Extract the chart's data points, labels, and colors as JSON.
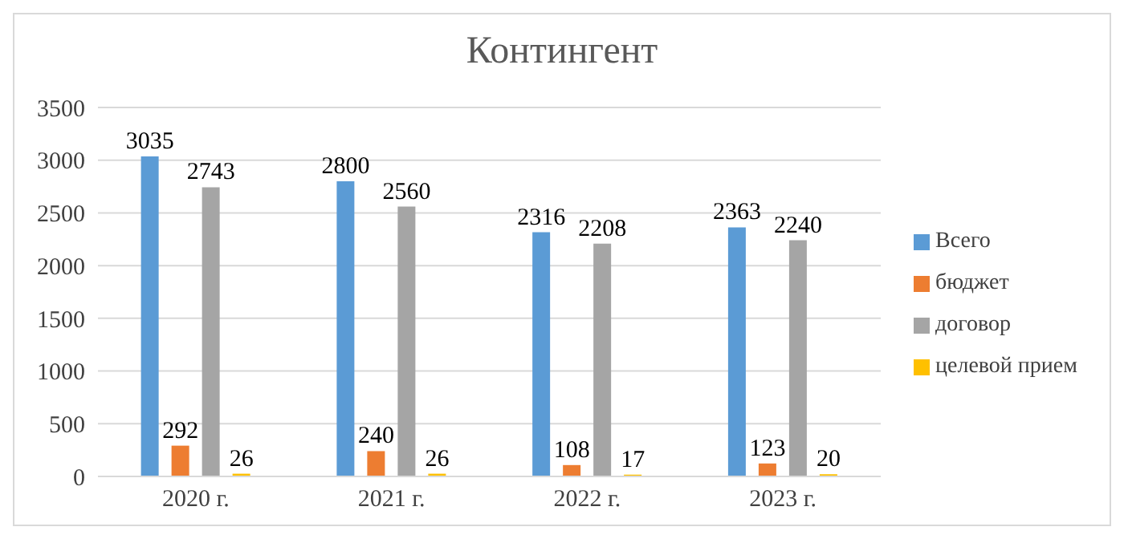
{
  "chart_data": {
    "type": "bar",
    "title": "Контингент",
    "categories": [
      "2020 г.",
      "2021 г.",
      "2022 г.",
      "2023 г."
    ],
    "series": [
      {
        "name": "Всего",
        "color": "#5b9bd5",
        "values": [
          3035,
          2800,
          2316,
          2363
        ]
      },
      {
        "name": "бюджет",
        "color": "#ed7d31",
        "values": [
          292,
          240,
          108,
          123
        ]
      },
      {
        "name": "договор",
        "color": "#a5a5a5",
        "values": [
          2743,
          2560,
          2208,
          2240
        ]
      },
      {
        "name": "целевой прием",
        "color": "#ffc000",
        "values": [
          26,
          26,
          17,
          20
        ]
      }
    ],
    "ylim": [
      0,
      3500
    ],
    "yticks": [
      0,
      500,
      1000,
      1500,
      2000,
      2500,
      3000,
      3500
    ],
    "grid": "y",
    "legend": "right",
    "data_labels": true
  }
}
